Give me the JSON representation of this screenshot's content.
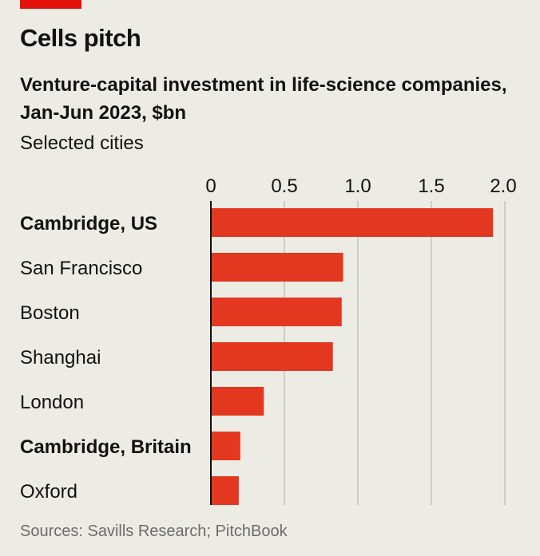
{
  "header": {
    "title": "Cells pitch",
    "subtitle": "Venture-capital investment in life-science companies, Jan-Jun 2023, $bn",
    "note": "Selected cities"
  },
  "footer": {
    "source": "Sources: Savills Research; PitchBook"
  },
  "colors": {
    "accent": "#e3120b",
    "bar": "#e3381f",
    "grid": "#b7b7b1",
    "background": "#ecebe4"
  },
  "chart_data": {
    "type": "bar",
    "orientation": "horizontal",
    "categories": [
      "Cambridge, US",
      "San Francisco",
      "Boston",
      "Shanghai",
      "London",
      "Cambridge, Britain",
      "Oxford"
    ],
    "highlighted": [
      "Cambridge, US",
      "Cambridge, Britain"
    ],
    "values": [
      1.92,
      0.9,
      0.89,
      0.83,
      0.36,
      0.2,
      0.19
    ],
    "tick_values": [
      0,
      0.5,
      1.0,
      1.5,
      2.0
    ],
    "tick_labels": [
      "0",
      "0.5",
      "1.0",
      "1.5",
      "2.0"
    ],
    "xlim": [
      0,
      2.0
    ],
    "grid": true,
    "axis_position": "top"
  }
}
